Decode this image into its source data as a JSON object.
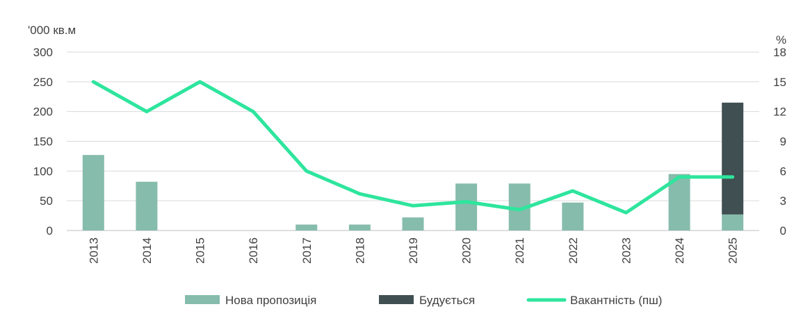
{
  "chart_data": {
    "type": "bar",
    "categories": [
      "2013",
      "2014",
      "2015",
      "2016",
      "2017",
      "2018",
      "2019",
      "2020",
      "2021",
      "2022",
      "2023",
      "2024",
      "2025"
    ],
    "series": [
      {
        "name": "Нова пропозиція",
        "kind": "bar",
        "axis": "left",
        "color": "#86BCAC",
        "values": [
          127,
          82,
          0,
          0,
          10,
          10,
          22,
          79,
          79,
          47,
          0,
          95,
          27
        ]
      },
      {
        "name": "Будується",
        "kind": "bar-stacked",
        "axis": "left",
        "color": "#404F52",
        "values": [
          0,
          0,
          0,
          0,
          0,
          0,
          0,
          0,
          0,
          0,
          0,
          0,
          188
        ]
      },
      {
        "name": "Вакантність (пш)",
        "kind": "line",
        "axis": "right",
        "color": "#2EE59D",
        "values": [
          15,
          12,
          15,
          12,
          6,
          3.7,
          2.5,
          2.9,
          2.1,
          4,
          1.8,
          5.4,
          5.4
        ]
      }
    ],
    "y_left": {
      "label": "'000 кв.м",
      "lim": [
        0,
        300
      ],
      "ticks": [
        0,
        50,
        100,
        150,
        200,
        250,
        300
      ]
    },
    "y_right": {
      "label": "%",
      "lim": [
        0,
        18
      ],
      "ticks": [
        0,
        3,
        6,
        9,
        12,
        15,
        18
      ]
    },
    "grid": true,
    "legend_position": "bottom"
  }
}
